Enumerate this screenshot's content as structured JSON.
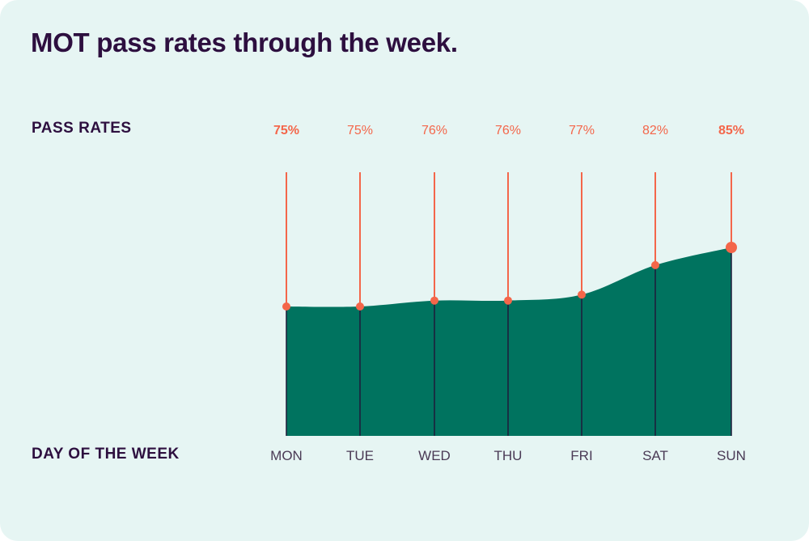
{
  "title": "MOT pass rates through the week.",
  "chart_data": {
    "type": "area",
    "title": "MOT pass rates through the week.",
    "ylabel": "PASS RATES",
    "xlabel": "DAY OF THE WEEK",
    "categories": [
      "MON",
      "TUE",
      "WED",
      "THU",
      "FRI",
      "SAT",
      "SUN"
    ],
    "values": [
      75,
      75,
      76,
      76,
      77,
      82,
      85
    ],
    "labels": [
      "75%",
      "75%",
      "76%",
      "76%",
      "77%",
      "82%",
      "85%"
    ],
    "highlighted": [
      "MON",
      "SUN"
    ],
    "grid": false,
    "colors": {
      "area": "#00735f",
      "accent": "#f4664a",
      "text": "#2d0f3f",
      "background": "#e6f5f3"
    }
  }
}
